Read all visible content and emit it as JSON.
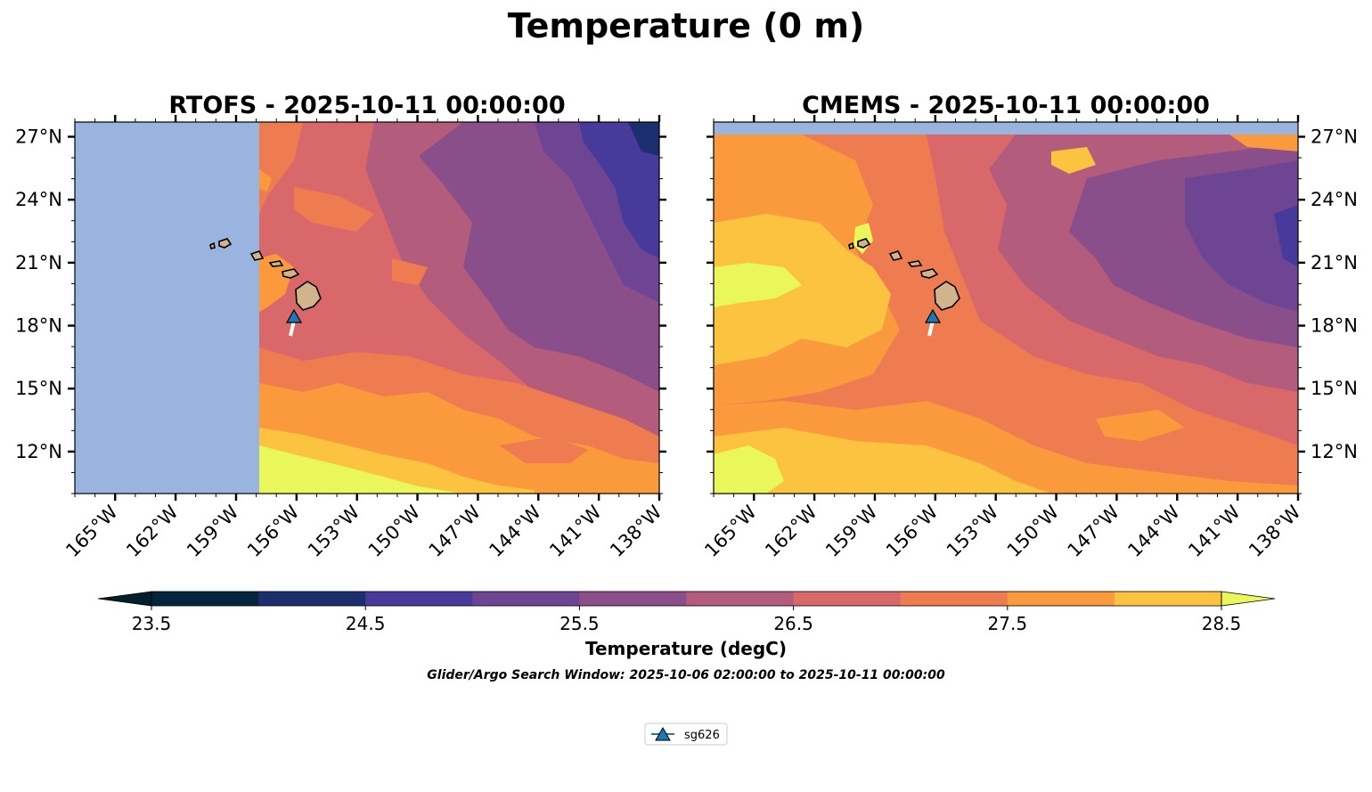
{
  "figure": {
    "title": "Temperature (0 m)",
    "search_window": "Glider/Argo Search Window: 2025-10-06 02:00:00 to 2025-10-11 00:00:00"
  },
  "panels": [
    {
      "id": "rtofs",
      "title": "RTOFS - 2025-10-11 00:00:00",
      "lat_label_side": "left"
    },
    {
      "id": "cmems",
      "title": "CMEMS - 2025-10-11 00:00:00",
      "lat_label_side": "right"
    }
  ],
  "map_extent": {
    "lon_min": -167,
    "lon_max": -138,
    "lat_min": 10,
    "lat_max": 27.7
  },
  "lon_ticks": [
    {
      "value": -165,
      "label": "165°W"
    },
    {
      "value": -162,
      "label": "162°W"
    },
    {
      "value": -159,
      "label": "159°W"
    },
    {
      "value": -156,
      "label": "156°W"
    },
    {
      "value": -153,
      "label": "153°W"
    },
    {
      "value": -150,
      "label": "150°W"
    },
    {
      "value": -147,
      "label": "147°W"
    },
    {
      "value": -144,
      "label": "144°W"
    },
    {
      "value": -141,
      "label": "141°W"
    },
    {
      "value": -138,
      "label": "138°W"
    }
  ],
  "lat_ticks": [
    {
      "value": 27,
      "label": "27°N"
    },
    {
      "value": 24,
      "label": "24°N"
    },
    {
      "value": 21,
      "label": "21°N"
    },
    {
      "value": 18,
      "label": "18°N"
    },
    {
      "value": 15,
      "label": "15°N"
    },
    {
      "value": 12,
      "label": "12°N"
    }
  ],
  "colorbar": {
    "label": "Temperature (degC)",
    "levels": [
      23.5,
      24.0,
      24.5,
      25.0,
      25.5,
      26.0,
      26.5,
      27.0,
      27.5,
      28.0,
      28.5
    ],
    "colors": [
      "#06243b",
      "#1b2f6e",
      "#473a9a",
      "#6d4592",
      "#8a4f8a",
      "#b35c7b",
      "#d9686b",
      "#ee7c50",
      "#fb9a3d",
      "#fbc33f"
    ],
    "under_color": "#031e2d",
    "over_color": "#e9f75a",
    "tick_values": [
      23.5,
      24.5,
      25.5,
      26.5,
      27.5,
      28.5
    ],
    "tick_labels": [
      "23.5",
      "24.5",
      "25.5",
      "26.5",
      "27.5",
      "28.5"
    ]
  },
  "legend": {
    "entries": [
      {
        "label": "sg626",
        "marker": "triangle-up",
        "color": "#1f77b4"
      }
    ]
  },
  "glider": {
    "name": "sg626",
    "lon": -156.1,
    "lat": 18.7
  },
  "colors": {
    "no_data": "#98b4df",
    "land": "#d2b48c"
  }
}
